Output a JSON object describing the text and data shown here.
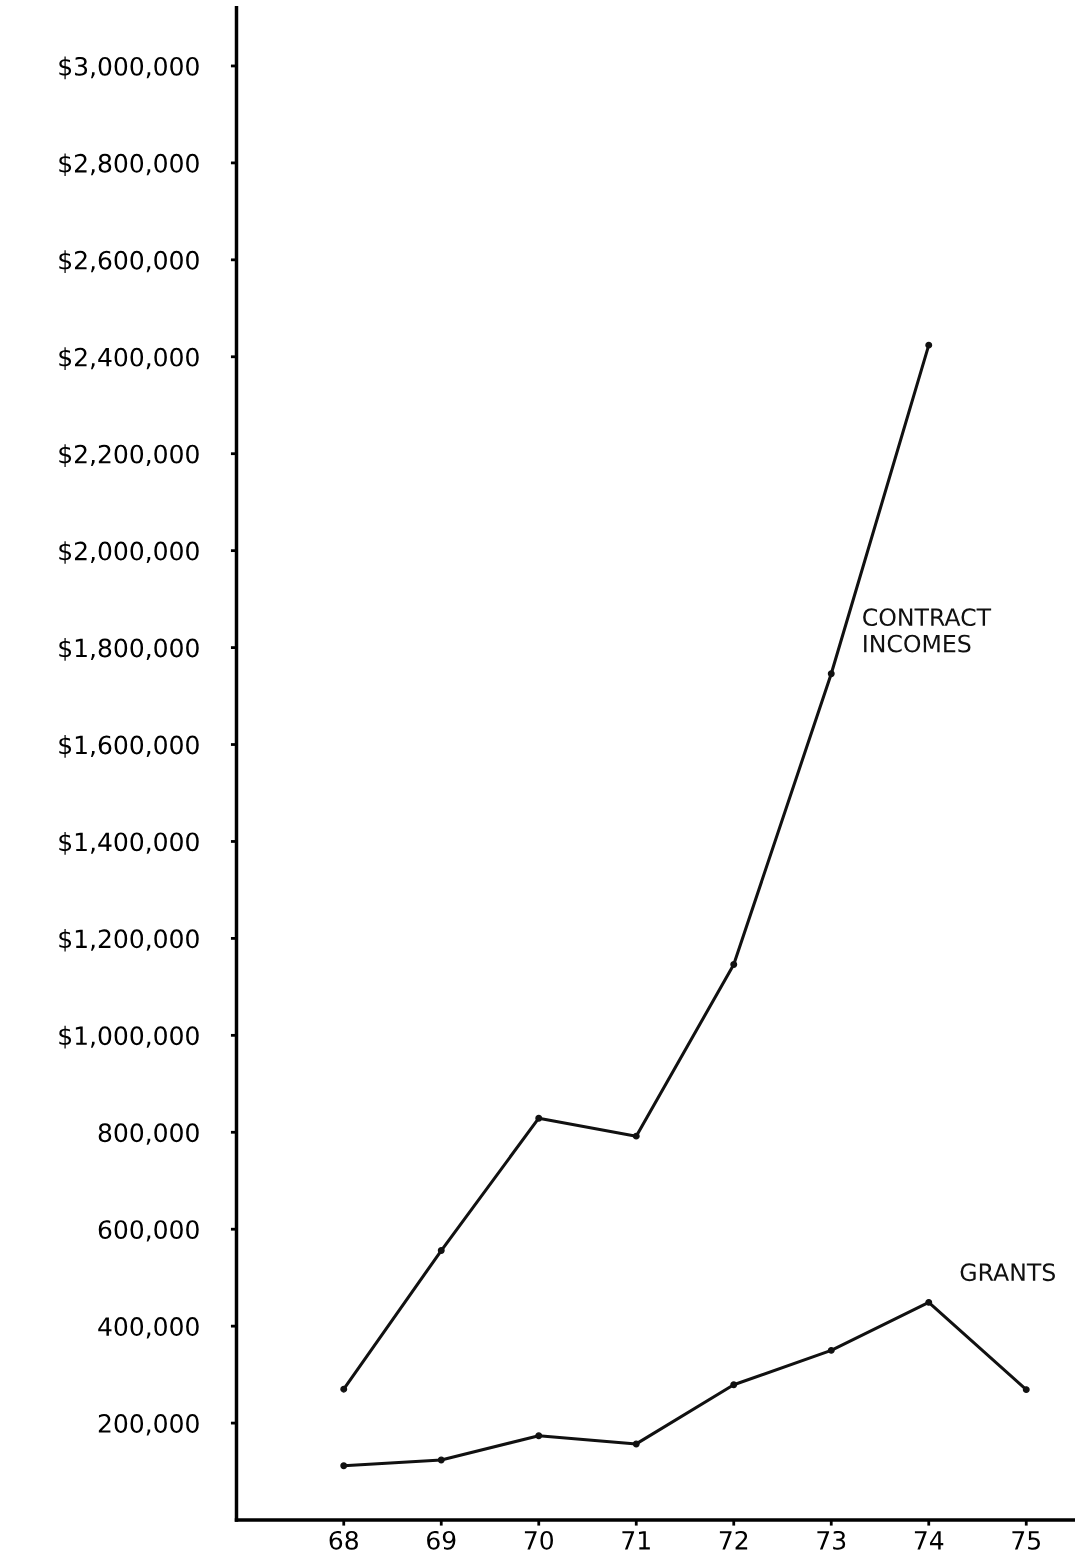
{
  "chart_data": {
    "type": "line",
    "x": [
      68,
      69,
      70,
      71,
      72,
      73,
      74,
      75
    ],
    "series": [
      {
        "name": "CONTRACT\nINCOMES",
        "color": "#111111",
        "values": [
          270000,
          556000,
          829000,
          792000,
          1146000,
          1746000,
          2424000,
          null
        ]
      },
      {
        "name": "GRANTS",
        "color": "#111111",
        "values": [
          112000,
          124000,
          174000,
          157000,
          279000,
          350000,
          449000,
          269000
        ]
      }
    ],
    "xlim": [
      66.9,
      75.5
    ],
    "xticks": [
      68,
      69,
      70,
      71,
      72,
      73,
      74,
      75
    ],
    "ylim": [
      0,
      3120000
    ],
    "yticks": [
      {
        "value": 200000,
        "label": "200,000"
      },
      {
        "value": 400000,
        "label": "400,000"
      },
      {
        "value": 600000,
        "label": "600,000"
      },
      {
        "value": 800000,
        "label": "800,000"
      },
      {
        "value": 1000000,
        "label": "$1,000,000"
      },
      {
        "value": 1200000,
        "label": "$1,200,000"
      },
      {
        "value": 1400000,
        "label": "$1,400,000"
      },
      {
        "value": 1600000,
        "label": "$1,600,000"
      },
      {
        "value": 1800000,
        "label": "$1,800,000"
      },
      {
        "value": 2000000,
        "label": "$2,000,000"
      },
      {
        "value": 2200000,
        "label": "$2,200,000"
      },
      {
        "value": 2400000,
        "label": "$2,400,000"
      },
      {
        "value": 2600000,
        "label": "$2,600,000"
      },
      {
        "value": 2800000,
        "label": "$2,800,000"
      },
      {
        "value": 3000000,
        "label": "$3,000,000"
      }
    ],
    "grid": false,
    "legend": false,
    "marker": "circle",
    "line_style": "solid"
  }
}
